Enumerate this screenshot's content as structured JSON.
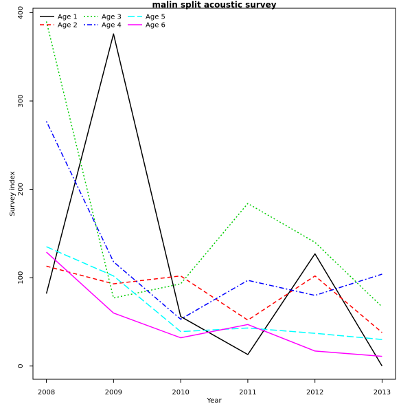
{
  "chart_data": {
    "type": "line",
    "title": "malin split acoustic survey",
    "xlabel": "Year",
    "ylabel": "Survey index",
    "x": [
      2008,
      2009,
      2010,
      2011,
      2012,
      2013
    ],
    "xlim": [
      2007.8,
      2013.2
    ],
    "ylim": [
      -15,
      405
    ],
    "xticks": [
      2008,
      2009,
      2010,
      2011,
      2012,
      2013
    ],
    "yticks": [
      0,
      100,
      200,
      300,
      400
    ],
    "grid": false,
    "legend_position": "top-left",
    "series": [
      {
        "name": "Age 1",
        "color": "#000000",
        "dash": "solid",
        "values": [
          82,
          376,
          56,
          13,
          127,
          0
        ]
      },
      {
        "name": "Age 2",
        "color": "#ff0000",
        "dash": "dashed",
        "values": [
          113,
          93,
          102,
          52,
          102,
          38
        ]
      },
      {
        "name": "Age 3",
        "color": "#00cd00",
        "dash": "dotted",
        "values": [
          390,
          77,
          93,
          184,
          140,
          67
        ]
      },
      {
        "name": "Age 4",
        "color": "#0000ff",
        "dash": "dotdash",
        "values": [
          277,
          118,
          53,
          97,
          80,
          104
        ]
      },
      {
        "name": "Age 5",
        "color": "#00ffff",
        "dash": "longdash",
        "values": [
          135,
          102,
          39,
          43,
          37,
          30
        ]
      },
      {
        "name": "Age 6",
        "color": "#ff00ff",
        "dash": "solid",
        "values": [
          129,
          60,
          32,
          47,
          17,
          11
        ]
      }
    ]
  }
}
